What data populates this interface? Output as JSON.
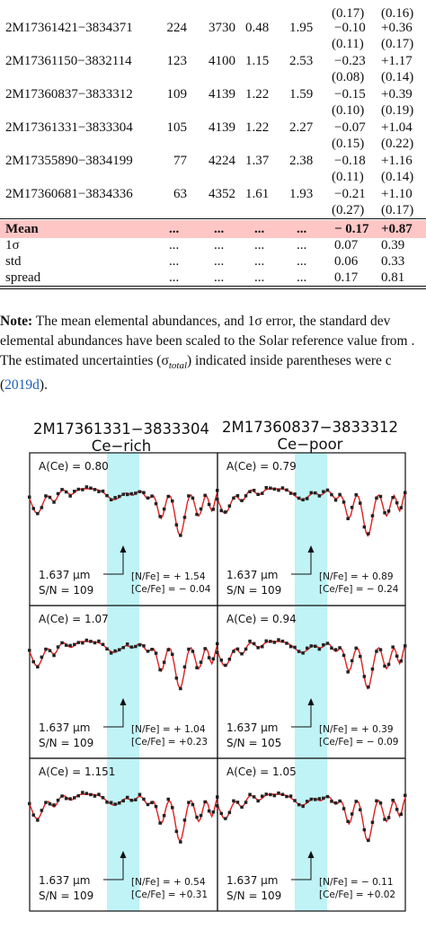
{
  "table": {
    "rows": [
      {
        "star": "",
        "c1": "",
        "c2": "",
        "c3": "",
        "c4": "",
        "err1": "(0.17)",
        "err2": "(0.16)",
        "val1": "",
        "val2": ""
      },
      {
        "star": "2M17361421−3834371",
        "c1": "224",
        "c2": "3730",
        "c3": "0.48",
        "c4": "1.95",
        "val1": "−0.10",
        "val2": "+0.36",
        "err1": "(0.11)",
        "err2": "(0.17)"
      },
      {
        "star": "2M17361150−3832114",
        "c1": "123",
        "c2": "4100",
        "c3": "1.15",
        "c4": "2.53",
        "val1": "−0.23",
        "val2": "+1.17",
        "err1": "(0.08)",
        "err2": "(0.14)"
      },
      {
        "star": "2M17360837−3833312",
        "c1": "109",
        "c2": "4139",
        "c3": "1.22",
        "c4": "1.59",
        "val1": "−0.15",
        "val2": "+0.39",
        "err1": "(0.10)",
        "err2": "(0.19)"
      },
      {
        "star": "2M17361331−3833304",
        "c1": "105",
        "c2": "4139",
        "c3": "1.22",
        "c4": "2.27",
        "val1": "−0.07",
        "val2": "+1.04",
        "err1": "(0.15)",
        "err2": "(0.22)"
      },
      {
        "star": "2M17355890−3834199",
        "c1": "77",
        "c2": "4224",
        "c3": "1.37",
        "c4": "2.38",
        "val1": "−0.18",
        "val2": "+1.16",
        "err1": "(0.11)",
        "err2": "(0.14)"
      },
      {
        "star": "2M17360681−3834336",
        "c1": "63",
        "c2": "4352",
        "c3": "1.61",
        "c4": "1.93",
        "val1": "−0.21",
        "val2": "+1.10",
        "err1": "(0.27)",
        "err2": "(0.17)"
      }
    ],
    "summary": [
      {
        "label": "Mean",
        "dots": "...",
        "v1": "− 0.17",
        "v2": "+0.87",
        "bold": true
      },
      {
        "label": "1σ",
        "dots": "...",
        "v1": "0.07",
        "v2": "0.39"
      },
      {
        "label": "std",
        "dots": "...",
        "v1": "0.06",
        "v2": "0.33"
      },
      {
        "label": "spread",
        "dots": "...",
        "v1": "0.17",
        "v2": "0.81"
      }
    ]
  },
  "note": {
    "label": "Note:",
    "line1": " The mean elemental abundances, and 1σ error, the standard dev",
    "line2": "elemental abundances have been scaled to the Solar reference value from .",
    "line3a": "The estimated uncertainties (σ",
    "line3sub": "total",
    "line3b": ") indicated inside parentheses were c",
    "line4open": "(",
    "line4cite": "2019d",
    "line4close": ")."
  },
  "figure": {
    "columns": [
      {
        "star": "2M17361331−3833304",
        "tag": "Ce−rich"
      },
      {
        "star": "2M17360837−3833312",
        "tag": "Ce−poor"
      }
    ],
    "wavelength_label": "1.637 μm",
    "panels": [
      {
        "col": 0,
        "row": 0,
        "ace": "A(Ce) = 0.80",
        "sn": "S/N = 109",
        "nfe": "",
        "cefe": ""
      },
      {
        "col": 1,
        "row": 0,
        "ace": "A(Ce) = 0.79",
        "sn": "S/N = 109",
        "nfe": "[N/Fe] = + 0.89",
        "cefe": "[Ce/Fe] = − 0.24"
      },
      {
        "col": 0,
        "row": 1,
        "ace": "A(Ce) = 1.07",
        "sn": "S/N = 109",
        "nfe": "[N/Fe] = + 1.04",
        "cefe": "[Ce/Fe] = +0.23"
      },
      {
        "col": 1,
        "row": 1,
        "ace": "A(Ce) = 0.94",
        "sn": "S/N = 105",
        "nfe": "[N/Fe] = + 0.39",
        "cefe": "[Ce/Fe] = − 0.09"
      },
      {
        "col": 0,
        "row": 2,
        "ace": "A(Ce) = 1.151",
        "sn": "S/N = 109",
        "nfe": "[N/Fe] = + 0.54",
        "cefe": "[Ce/Fe] = +0.31"
      },
      {
        "col": 1,
        "row": 2,
        "ace": "A(Ce) = 1.05",
        "sn": "S/N = 109",
        "nfe": "[N/Fe] = − 0.11",
        "cefe": "[Ce/Fe] = +0.02"
      }
    ],
    "panel0_extra": {
      "nfe": "[N/Fe] = + 1.54",
      "cefe": "[Ce/Fe] = − 0.04"
    },
    "colors": {
      "model": "#e02020",
      "observed": "#222222",
      "highlight": "#bff3f5"
    }
  }
}
